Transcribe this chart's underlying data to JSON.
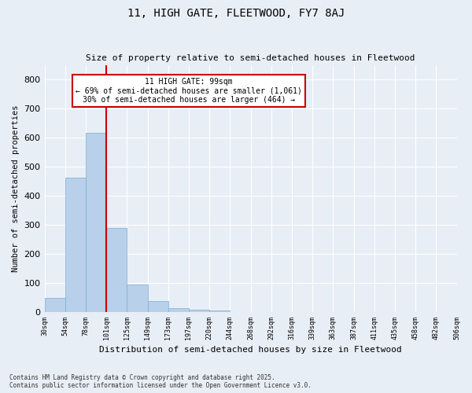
{
  "title1": "11, HIGH GATE, FLEETWOOD, FY7 8AJ",
  "title2": "Size of property relative to semi-detached houses in Fleetwood",
  "xlabel": "Distribution of semi-detached houses by size in Fleetwood",
  "ylabel": "Number of semi-detached properties",
  "bar_values": [
    47,
    462,
    617,
    290,
    94,
    37,
    14,
    8,
    5,
    0,
    0,
    0,
    0,
    0,
    0,
    0,
    0,
    0,
    0,
    0
  ],
  "categories": [
    "30sqm",
    "54sqm",
    "78sqm",
    "101sqm",
    "125sqm",
    "149sqm",
    "173sqm",
    "197sqm",
    "220sqm",
    "244sqm",
    "268sqm",
    "292sqm",
    "316sqm",
    "339sqm",
    "363sqm",
    "387sqm",
    "411sqm",
    "435sqm",
    "458sqm",
    "482sqm",
    "506sqm"
  ],
  "bar_color": "#b8d0ea",
  "bar_edge_color": "#7aafd4",
  "background_color": "#e8eef6",
  "grid_color": "#ffffff",
  "vline_color": "#cc0000",
  "annotation_title": "11 HIGH GATE: 99sqm",
  "annotation_line1": "← 69% of semi-detached houses are smaller (1,061)",
  "annotation_line2": "30% of semi-detached houses are larger (464) →",
  "annotation_box_color": "#ffffff",
  "annotation_box_edge": "#cc0000",
  "ylim": [
    0,
    850
  ],
  "yticks": [
    0,
    100,
    200,
    300,
    400,
    500,
    600,
    700,
    800
  ],
  "footnote1": "Contains HM Land Registry data © Crown copyright and database right 2025.",
  "footnote2": "Contains public sector information licensed under the Open Government Licence v3.0."
}
